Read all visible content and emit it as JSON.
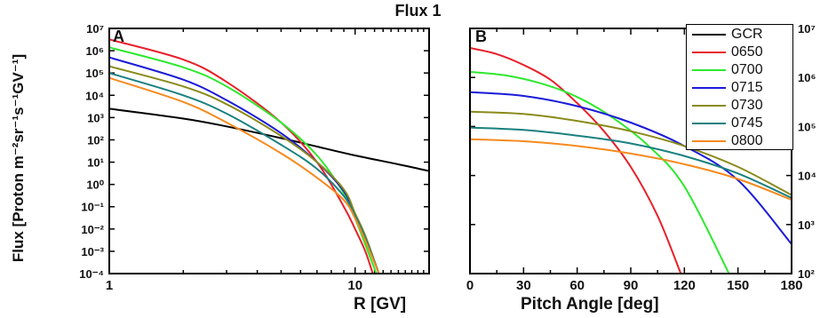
{
  "title": "Flux 1",
  "ylabel": "Flux [Proton m⁻²sr⁻¹s⁻¹GV⁻¹]",
  "legend": [
    {
      "label": "GCR",
      "color": "#000000"
    },
    {
      "label": "0650",
      "color": "#e8202a"
    },
    {
      "label": "0700",
      "color": "#2ee82e"
    },
    {
      "label": "0715",
      "color": "#1a1ad8"
    },
    {
      "label": "0730",
      "color": "#8a8a1a"
    },
    {
      "label": "0745",
      "color": "#1a8080"
    },
    {
      "label": "0800",
      "color": "#f58a1e"
    }
  ],
  "chart_data": [
    {
      "panel": "A",
      "type": "line",
      "xlabel": "R [GV]",
      "xscale": "log",
      "yscale": "log",
      "xlim": [
        1,
        20
      ],
      "ylim": [
        0.0001,
        10000000
      ],
      "xticks": [
        "1",
        "10"
      ],
      "yticks": [
        "10⁻⁴",
        "10⁻³",
        "10⁻²",
        "10⁻¹",
        "10⁰",
        "10¹",
        "10²",
        "10³",
        "10⁴",
        "10⁵",
        "10⁶",
        "10⁷"
      ],
      "series": [
        {
          "name": "GCR",
          "x": [
            1,
            2,
            3,
            5,
            7,
            10,
            15,
            20
          ],
          "y": [
            2500,
            900,
            400,
            120,
            50,
            20,
            8,
            4
          ]
        },
        {
          "name": "0650",
          "x": [
            1,
            2,
            3,
            5,
            7,
            9,
            10,
            11,
            11.8
          ],
          "y": [
            3200000,
            400000,
            40000,
            600,
            10,
            0.1,
            0.01,
            0.001,
            0.0001
          ]
        },
        {
          "name": "0700",
          "x": [
            1,
            2,
            3,
            5,
            7,
            9,
            10,
            11,
            12.2
          ],
          "y": [
            1400000,
            180000,
            25000,
            600,
            20,
            0.4,
            0.03,
            0.002,
            0.0001
          ]
        },
        {
          "name": "0715",
          "x": [
            1,
            2,
            3,
            5,
            7,
            9,
            10,
            11,
            12.5
          ],
          "y": [
            500000,
            50000,
            6000,
            200,
            10,
            0.5,
            0.04,
            0.004,
            0.0001
          ]
        },
        {
          "name": "0730",
          "x": [
            1,
            2,
            3,
            5,
            7,
            9,
            10,
            11,
            12.5
          ],
          "y": [
            200000,
            25000,
            4000,
            150,
            10,
            0.6,
            0.05,
            0.005,
            0.0001
          ]
        },
        {
          "name": "0745",
          "x": [
            1,
            2,
            3,
            5,
            7,
            9,
            10,
            11,
            12.5
          ],
          "y": [
            100000,
            10000,
            1500,
            60,
            5,
            0.3,
            0.04,
            0.004,
            0.0001
          ]
        },
        {
          "name": "0800",
          "x": [
            1,
            2,
            3,
            5,
            7,
            9,
            10,
            11,
            12.5
          ],
          "y": [
            60000,
            5000,
            600,
            25,
            2,
            0.2,
            0.03,
            0.003,
            0.0001
          ]
        }
      ]
    },
    {
      "panel": "B",
      "type": "line",
      "xlabel": "Pitch Angle [deg]",
      "yscale": "log",
      "xlim": [
        0,
        180
      ],
      "ylim": [
        100,
        10000000
      ],
      "xticks": [
        "0",
        "30",
        "60",
        "90",
        "120",
        "150",
        "180"
      ],
      "yticks": [
        "10²",
        "10³",
        "10⁴",
        "10⁵",
        "10⁶",
        "10⁷"
      ],
      "series": [
        {
          "name": "0650",
          "x": [
            0,
            15,
            30,
            45,
            60,
            75,
            90,
            105,
            118
          ],
          "y": [
            4000000,
            3000000,
            1800000,
            900000,
            300000,
            80000,
            15000,
            1500,
            100
          ]
        },
        {
          "name": "0700",
          "x": [
            0,
            20,
            40,
            60,
            80,
            100,
            120,
            145
          ],
          "y": [
            1300000,
            1100000,
            750000,
            400000,
            150000,
            40000,
            6000,
            100
          ]
        },
        {
          "name": "0715",
          "x": [
            0,
            30,
            60,
            90,
            120,
            150,
            180
          ],
          "y": [
            500000,
            420000,
            260000,
            120000,
            40000,
            8000,
            400
          ]
        },
        {
          "name": "0730",
          "x": [
            0,
            30,
            60,
            90,
            120,
            150,
            180
          ],
          "y": [
            200000,
            180000,
            130000,
            80000,
            40000,
            15000,
            4000
          ]
        },
        {
          "name": "0745",
          "x": [
            0,
            30,
            60,
            90,
            120,
            150,
            180
          ],
          "y": [
            95000,
            85000,
            65000,
            45000,
            25000,
            11000,
            3500
          ]
        },
        {
          "name": "0800",
          "x": [
            0,
            30,
            60,
            90,
            120,
            150,
            180
          ],
          "y": [
            55000,
            50000,
            40000,
            28000,
            17000,
            8500,
            3200
          ]
        }
      ]
    }
  ]
}
